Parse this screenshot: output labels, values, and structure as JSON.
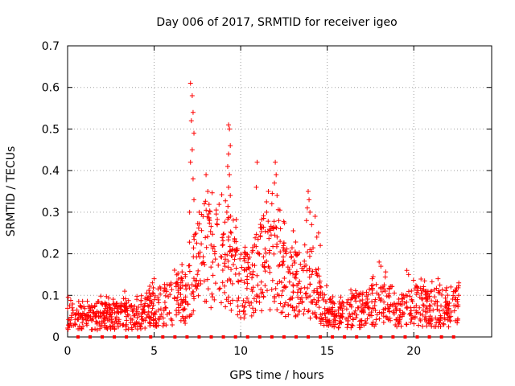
{
  "chart_data": {
    "type": "scatter",
    "title": "Day 006 of 2017, SRMTID for receiver igeo",
    "xlabel": "GPS time / hours",
    "ylabel": "SRMTID / TECUs",
    "xlim": [
      0,
      24.5
    ],
    "ylim": [
      0,
      0.7
    ],
    "xticks": [
      0,
      5,
      10,
      15,
      20
    ],
    "yticks": [
      0,
      0.1,
      0.2,
      0.3,
      0.4,
      0.5,
      0.6,
      0.7
    ],
    "xtick_labels": [
      "0",
      "5",
      "10",
      "15",
      "20"
    ],
    "ytick_labels": [
      "0",
      "0.1",
      "0.2",
      "0.3",
      "0.4",
      "0.5",
      "0.6",
      "0.7"
    ],
    "grid": true,
    "marker": "plus",
    "color": "#ff0000",
    "baseline_marks": {
      "y": 0,
      "x": [
        0.6,
        1.3,
        2.0,
        2.7,
        3.4,
        4.1,
        4.8,
        5.5,
        6.2,
        6.9,
        7.6,
        8.3,
        9.0,
        9.7,
        10.4,
        11.1,
        11.8,
        12.5,
        13.2,
        13.9,
        14.6,
        15.3,
        16.0,
        16.7,
        17.4,
        18.1,
        18.8,
        19.5,
        20.2,
        20.9,
        21.6,
        22.3
      ]
    },
    "profile": {
      "x_range": [
        0,
        22.6
      ],
      "envelope_x": [
        0,
        1,
        2,
        3,
        4,
        5,
        6,
        6.8,
        7.2,
        7.6,
        8.0,
        8.5,
        9.0,
        9.3,
        9.6,
        10.0,
        10.5,
        11.0,
        11.5,
        12.0,
        12.5,
        13.0,
        13.5,
        13.9,
        14.3,
        14.8,
        15.5,
        16.5,
        17.5,
        18.0,
        18.5,
        19.0,
        19.5,
        20.0,
        20.5,
        21.0,
        21.5,
        22.0,
        22.6
      ],
      "envelope_y": [
        0.05,
        0.045,
        0.05,
        0.05,
        0.05,
        0.07,
        0.08,
        0.09,
        0.13,
        0.18,
        0.2,
        0.19,
        0.17,
        0.2,
        0.15,
        0.13,
        0.12,
        0.16,
        0.18,
        0.17,
        0.14,
        0.13,
        0.11,
        0.13,
        0.12,
        0.07,
        0.05,
        0.06,
        0.07,
        0.08,
        0.08,
        0.07,
        0.06,
        0.08,
        0.07,
        0.07,
        0.07,
        0.06,
        0.08
      ]
    },
    "spikes": [
      {
        "x": 7.1,
        "y": 0.61
      },
      {
        "x": 7.2,
        "y": 0.58
      },
      {
        "x": 7.25,
        "y": 0.54
      },
      {
        "x": 7.15,
        "y": 0.52
      },
      {
        "x": 7.3,
        "y": 0.49
      },
      {
        "x": 7.2,
        "y": 0.45
      },
      {
        "x": 7.1,
        "y": 0.42
      },
      {
        "x": 7.25,
        "y": 0.38
      },
      {
        "x": 7.05,
        "y": 0.3
      },
      {
        "x": 7.3,
        "y": 0.33
      },
      {
        "x": 7.6,
        "y": 0.3
      },
      {
        "x": 8.0,
        "y": 0.39
      },
      {
        "x": 8.1,
        "y": 0.35
      },
      {
        "x": 7.9,
        "y": 0.32
      },
      {
        "x": 8.2,
        "y": 0.28
      },
      {
        "x": 8.5,
        "y": 0.2
      },
      {
        "x": 9.3,
        "y": 0.51
      },
      {
        "x": 9.35,
        "y": 0.5
      },
      {
        "x": 9.4,
        "y": 0.46
      },
      {
        "x": 9.3,
        "y": 0.44
      },
      {
        "x": 9.25,
        "y": 0.41
      },
      {
        "x": 9.35,
        "y": 0.39
      },
      {
        "x": 9.3,
        "y": 0.36
      },
      {
        "x": 9.4,
        "y": 0.34
      },
      {
        "x": 9.2,
        "y": 0.3
      },
      {
        "x": 9.3,
        "y": 0.24
      },
      {
        "x": 9.45,
        "y": 0.25
      },
      {
        "x": 10.95,
        "y": 0.42
      },
      {
        "x": 10.9,
        "y": 0.36
      },
      {
        "x": 11.5,
        "y": 0.3
      },
      {
        "x": 11.6,
        "y": 0.35
      },
      {
        "x": 11.8,
        "y": 0.32
      },
      {
        "x": 12.0,
        "y": 0.42
      },
      {
        "x": 12.05,
        "y": 0.39
      },
      {
        "x": 11.95,
        "y": 0.37
      },
      {
        "x": 12.1,
        "y": 0.34
      },
      {
        "x": 12.2,
        "y": 0.28
      },
      {
        "x": 12.3,
        "y": 0.26
      },
      {
        "x": 13.9,
        "y": 0.35
      },
      {
        "x": 13.95,
        "y": 0.33
      },
      {
        "x": 13.85,
        "y": 0.31
      },
      {
        "x": 14.0,
        "y": 0.3
      },
      {
        "x": 13.8,
        "y": 0.28
      },
      {
        "x": 14.1,
        "y": 0.27
      },
      {
        "x": 14.3,
        "y": 0.29
      },
      {
        "x": 14.5,
        "y": 0.25
      },
      {
        "x": 14.6,
        "y": 0.22
      },
      {
        "x": 14.4,
        "y": 0.24
      },
      {
        "x": 18.0,
        "y": 0.18
      },
      {
        "x": 18.1,
        "y": 0.17
      },
      {
        "x": 19.6,
        "y": 0.16
      },
      {
        "x": 19.7,
        "y": 0.15
      },
      {
        "x": 17.6,
        "y": 0.14
      },
      {
        "x": 21.4,
        "y": 0.14
      },
      {
        "x": 22.6,
        "y": 0.13
      },
      {
        "x": 5.0,
        "y": 0.14
      },
      {
        "x": 4.9,
        "y": 0.13
      },
      {
        "x": 6.8,
        "y": 0.15
      },
      {
        "x": 6.6,
        "y": 0.14
      },
      {
        "x": 3.3,
        "y": 0.11
      }
    ]
  }
}
